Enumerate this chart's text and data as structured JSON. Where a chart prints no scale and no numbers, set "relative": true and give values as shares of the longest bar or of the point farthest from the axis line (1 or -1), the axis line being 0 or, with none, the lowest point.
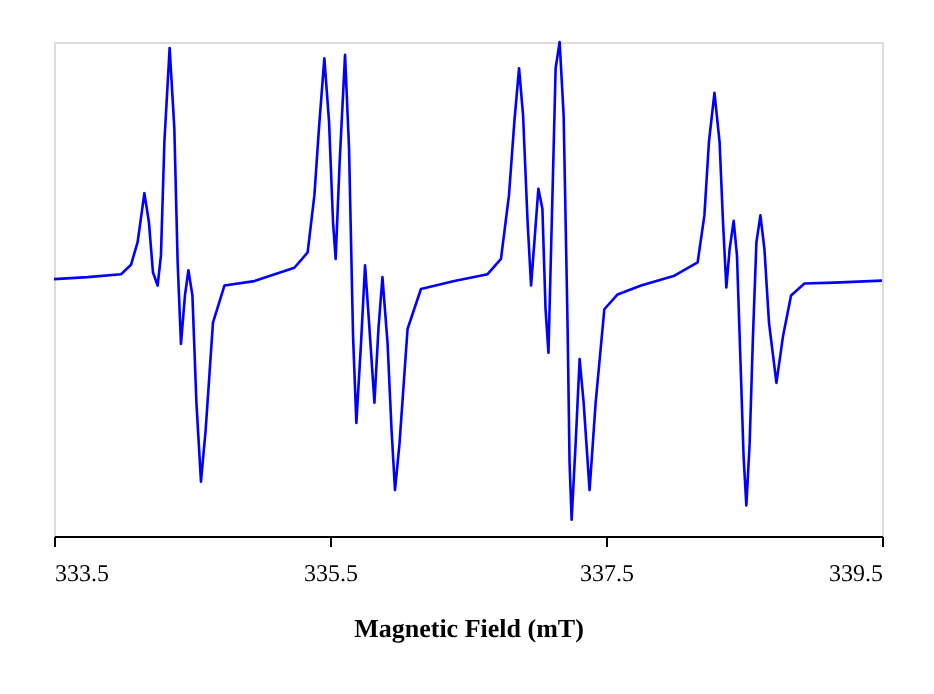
{
  "chart_data": {
    "type": "line",
    "relative": true,
    "xlabel": "Magnetic Field (mT)",
    "xlim": [
      333.5,
      339.5
    ],
    "xticks": [
      333.5,
      335.5,
      337.5,
      339.5
    ],
    "grid": false,
    "marker": "none",
    "line_style": "solid",
    "x": [
      333.5,
      333.743,
      333.986,
      334.058,
      334.106,
      334.155,
      334.188,
      334.217,
      334.251,
      334.275,
      334.3,
      334.338,
      334.372,
      334.396,
      334.42,
      334.449,
      334.474,
      334.503,
      334.532,
      334.565,
      334.599,
      334.652,
      334.735,
      334.952,
      335.242,
      335.338,
      335.387,
      335.42,
      335.459,
      335.493,
      335.522,
      335.541,
      335.57,
      335.609,
      335.638,
      335.667,
      335.691,
      335.725,
      335.754,
      335.783,
      335.822,
      335.851,
      335.88,
      335.917,
      335.946,
      335.971,
      336.004,
      336.062,
      336.159,
      336.401,
      336.642,
      336.739,
      336.797,
      336.836,
      336.87,
      336.899,
      336.932,
      336.957,
      336.981,
      337.01,
      337.039,
      337.062,
      337.083,
      337.112,
      337.135,
      337.164,
      337.193,
      337.222,
      337.236,
      337.251,
      337.28,
      337.309,
      337.338,
      337.381,
      337.425,
      337.488,
      337.584,
      337.754,
      337.996,
      338.164,
      338.213,
      338.246,
      338.286,
      338.323,
      338.348,
      338.372,
      338.396,
      338.425,
      338.449,
      338.478,
      338.497,
      338.517,
      338.541,
      338.565,
      338.59,
      338.619,
      338.648,
      338.681,
      338.735,
      338.783,
      338.841,
      338.938,
      339.155,
      339.5
    ],
    "series": [
      {
        "color": "#0000ff",
        "values": [
          0.52,
          0.524,
          0.53,
          0.549,
          0.595,
          0.694,
          0.635,
          0.534,
          0.507,
          0.568,
          0.798,
          0.988,
          0.825,
          0.554,
          0.389,
          0.487,
          0.538,
          0.487,
          0.27,
          0.11,
          0.215,
          0.432,
          0.507,
          0.516,
          0.543,
          0.574,
          0.69,
          0.825,
          0.967,
          0.839,
          0.635,
          0.561,
          0.757,
          0.974,
          0.785,
          0.405,
          0.229,
          0.391,
          0.548,
          0.432,
          0.27,
          0.419,
          0.524,
          0.391,
          0.215,
          0.093,
          0.188,
          0.419,
          0.5,
          0.516,
          0.53,
          0.561,
          0.69,
          0.839,
          0.947,
          0.852,
          0.635,
          0.507,
          0.595,
          0.703,
          0.663,
          0.459,
          0.371,
          0.69,
          0.947,
          1.0,
          0.852,
          0.419,
          0.148,
          0.033,
          0.188,
          0.358,
          0.27,
          0.093,
          0.27,
          0.459,
          0.489,
          0.507,
          0.527,
          0.554,
          0.649,
          0.798,
          0.897,
          0.798,
          0.635,
          0.503,
          0.581,
          0.638,
          0.568,
          0.324,
          0.161,
          0.062,
          0.188,
          0.405,
          0.595,
          0.649,
          0.581,
          0.432,
          0.31,
          0.405,
          0.487,
          0.511,
          0.513,
          0.517
        ]
      }
    ]
  }
}
